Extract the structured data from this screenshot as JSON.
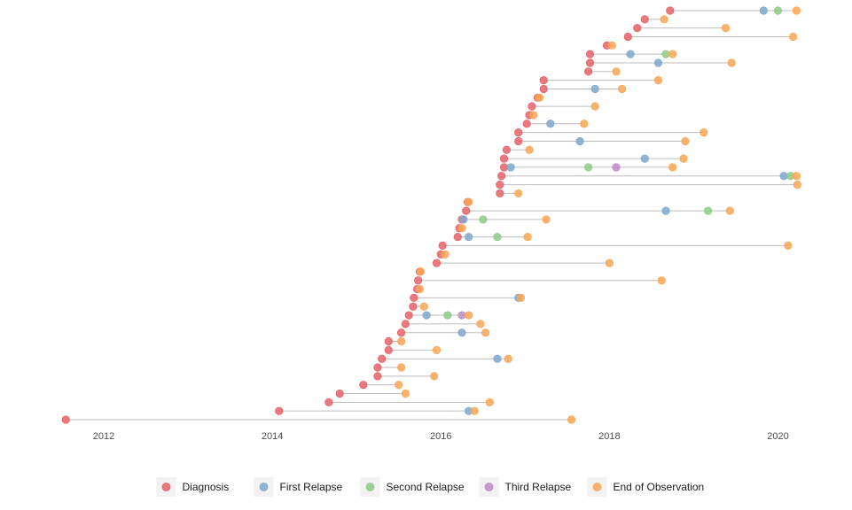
{
  "chart_data": {
    "type": "scatter",
    "subtype": "swimmer-timeline",
    "title": "",
    "xlabel": "",
    "ylabel": "",
    "xlim": [
      2011.4,
      2020.5
    ],
    "x_ticks": [
      2012,
      2014,
      2016,
      2018,
      2020
    ],
    "x_tick_labels": [
      "2012",
      "2014",
      "2016",
      "2018",
      "2020"
    ],
    "grid": false,
    "legend_position": "bottom",
    "segment_styles": {
      "observed": {
        "stroke": "#bdbdbd",
        "dash": "solid"
      },
      "censored": {
        "stroke": "#bdbdbd",
        "dash": "dashed"
      }
    },
    "series": [
      {
        "name": "Diagnosis",
        "key": "diagnosis",
        "color": "#e8626a"
      },
      {
        "name": "First Relapse",
        "key": "first_relapse",
        "color": "#80a8cc"
      },
      {
        "name": "Second Relapse",
        "key": "second_relapse",
        "color": "#8fcb8a"
      },
      {
        "name": "Third Relapse",
        "key": "third_relapse",
        "color": "#c08bc7"
      },
      {
        "name": "End of Observation",
        "key": "end",
        "color": "#f9a756"
      }
    ],
    "patients": [
      {
        "diagnosis": 2018.72,
        "events": [
          {
            "type": "first_relapse",
            "x": 2019.83
          },
          {
            "type": "second_relapse",
            "x": 2020.0
          }
        ],
        "end": 2020.22,
        "line": "dashed"
      },
      {
        "diagnosis": 2018.42,
        "events": [],
        "end": 2018.65,
        "line": "solid"
      },
      {
        "diagnosis": 2018.33,
        "events": [],
        "end": 2019.38,
        "line": "solid"
      },
      {
        "diagnosis": 2018.22,
        "events": [],
        "end": 2020.18,
        "line": "dashed"
      },
      {
        "diagnosis": 2017.97,
        "events": [],
        "end": 2018.03,
        "line": "solid"
      },
      {
        "diagnosis": 2017.77,
        "events": [
          {
            "type": "first_relapse",
            "x": 2018.25
          },
          {
            "type": "second_relapse",
            "x": 2018.67
          }
        ],
        "end": 2018.75,
        "line": "solid"
      },
      {
        "diagnosis": 2017.77,
        "events": [
          {
            "type": "first_relapse",
            "x": 2018.58
          }
        ],
        "end": 2019.45,
        "line": "dashed"
      },
      {
        "diagnosis": 2017.75,
        "events": [],
        "end": 2018.08,
        "line": "solid"
      },
      {
        "diagnosis": 2017.22,
        "events": [],
        "end": 2018.58,
        "line": "solid"
      },
      {
        "diagnosis": 2017.22,
        "events": [
          {
            "type": "first_relapse",
            "x": 2017.83
          }
        ],
        "end": 2018.15,
        "line": "solid"
      },
      {
        "diagnosis": 2017.15,
        "events": [],
        "end": 2017.17,
        "line": "solid"
      },
      {
        "diagnosis": 2017.08,
        "events": [],
        "end": 2017.83,
        "line": "dashed"
      },
      {
        "diagnosis": 2017.05,
        "events": [],
        "end": 2017.1,
        "line": "solid"
      },
      {
        "diagnosis": 2017.02,
        "events": [
          {
            "type": "first_relapse",
            "x": 2017.3
          }
        ],
        "end": 2017.7,
        "line": "solid"
      },
      {
        "diagnosis": 2016.92,
        "events": [],
        "end": 2019.12,
        "line": "dashed"
      },
      {
        "diagnosis": 2016.92,
        "events": [
          {
            "type": "first_relapse",
            "x": 2017.65
          }
        ],
        "end": 2018.9,
        "line": "solid"
      },
      {
        "diagnosis": 2016.78,
        "events": [],
        "end": 2017.05,
        "line": "solid"
      },
      {
        "diagnosis": 2016.75,
        "events": [
          {
            "type": "first_relapse",
            "x": 2018.42
          }
        ],
        "end": 2018.88,
        "line": "solid"
      },
      {
        "diagnosis": 2016.75,
        "events": [
          {
            "type": "first_relapse",
            "x": 2016.83
          },
          {
            "type": "second_relapse",
            "x": 2017.75
          },
          {
            "type": "third_relapse",
            "x": 2018.08
          }
        ],
        "end": 2018.75,
        "line": "solid"
      },
      {
        "diagnosis": 2016.72,
        "events": [
          {
            "type": "first_relapse",
            "x": 2020.07
          },
          {
            "type": "second_relapse",
            "x": 2020.15
          }
        ],
        "end": 2020.22,
        "line": "solid"
      },
      {
        "diagnosis": 2016.7,
        "events": [],
        "end": 2020.23,
        "line": "dashed"
      },
      {
        "diagnosis": 2016.7,
        "events": [],
        "end": 2016.92,
        "line": "solid"
      },
      {
        "diagnosis": 2016.32,
        "events": [],
        "end": 2016.33,
        "line": "solid"
      },
      {
        "diagnosis": 2016.3,
        "events": [
          {
            "type": "first_relapse",
            "x": 2018.67
          },
          {
            "type": "second_relapse",
            "x": 2019.17
          }
        ],
        "end": 2019.43,
        "line": "solid"
      },
      {
        "diagnosis": 2016.25,
        "events": [
          {
            "type": "first_relapse",
            "x": 2016.27
          },
          {
            "type": "second_relapse",
            "x": 2016.5
          }
        ],
        "end": 2017.25,
        "line": "solid"
      },
      {
        "diagnosis": 2016.22,
        "events": [],
        "end": 2016.25,
        "line": "solid"
      },
      {
        "diagnosis": 2016.2,
        "events": [
          {
            "type": "first_relapse",
            "x": 2016.33
          },
          {
            "type": "second_relapse",
            "x": 2016.67
          }
        ],
        "end": 2017.03,
        "line": "solid"
      },
      {
        "diagnosis": 2016.02,
        "events": [],
        "end": 2020.12,
        "line": "dashed"
      },
      {
        "diagnosis": 2016.0,
        "events": [],
        "end": 2016.05,
        "line": "solid"
      },
      {
        "diagnosis": 2015.95,
        "events": [],
        "end": 2018.0,
        "line": "solid"
      },
      {
        "diagnosis": 2015.75,
        "events": [],
        "end": 2015.76,
        "line": "solid"
      },
      {
        "diagnosis": 2015.73,
        "events": [],
        "end": 2018.62,
        "line": "dashed"
      },
      {
        "diagnosis": 2015.72,
        "events": [],
        "end": 2015.75,
        "line": "solid"
      },
      {
        "diagnosis": 2015.68,
        "events": [
          {
            "type": "first_relapse",
            "x": 2016.92
          }
        ],
        "end": 2016.95,
        "line": "solid"
      },
      {
        "diagnosis": 2015.67,
        "events": [],
        "end": 2015.8,
        "line": "solid"
      },
      {
        "diagnosis": 2015.62,
        "events": [
          {
            "type": "first_relapse",
            "x": 2015.83
          },
          {
            "type": "second_relapse",
            "x": 2016.08
          },
          {
            "type": "third_relapse",
            "x": 2016.25
          }
        ],
        "end": 2016.33,
        "line": "solid"
      },
      {
        "diagnosis": 2015.58,
        "events": [],
        "end": 2016.47,
        "line": "solid"
      },
      {
        "diagnosis": 2015.53,
        "events": [
          {
            "type": "first_relapse",
            "x": 2016.25
          }
        ],
        "end": 2016.53,
        "line": "solid"
      },
      {
        "diagnosis": 2015.38,
        "events": [],
        "end": 2015.53,
        "line": "solid"
      },
      {
        "diagnosis": 2015.38,
        "events": [],
        "end": 2015.95,
        "line": "solid"
      },
      {
        "diagnosis": 2015.3,
        "events": [
          {
            "type": "first_relapse",
            "x": 2016.67
          }
        ],
        "end": 2016.8,
        "line": "solid"
      },
      {
        "diagnosis": 2015.25,
        "events": [],
        "end": 2015.53,
        "line": "solid"
      },
      {
        "diagnosis": 2015.25,
        "events": [],
        "end": 2015.92,
        "line": "solid"
      },
      {
        "diagnosis": 2015.08,
        "events": [],
        "end": 2015.5,
        "line": "solid"
      },
      {
        "diagnosis": 2014.8,
        "events": [],
        "end": 2015.58,
        "line": "solid"
      },
      {
        "diagnosis": 2014.67,
        "events": [],
        "end": 2016.58,
        "line": "solid"
      },
      {
        "diagnosis": 2014.08,
        "events": [
          {
            "type": "first_relapse",
            "x": 2016.33
          }
        ],
        "end": 2016.4,
        "line": "solid"
      },
      {
        "diagnosis": 2011.55,
        "events": [],
        "end": 2017.55,
        "line": "solid"
      }
    ]
  }
}
